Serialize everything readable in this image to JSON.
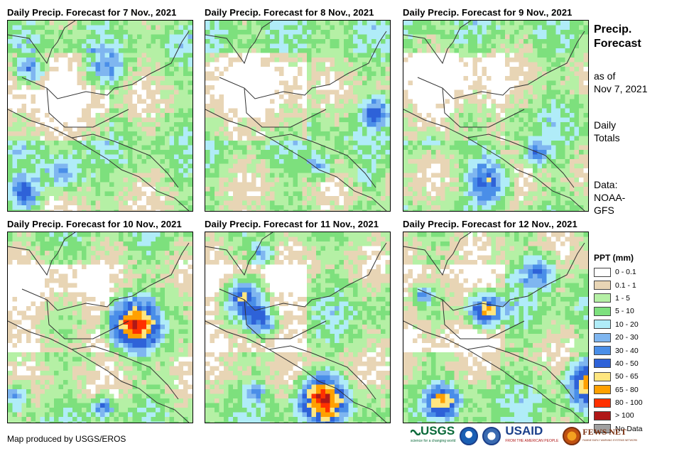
{
  "panels": [
    {
      "title": "Daily Precip. Forecast for 7 Nov., 2021",
      "seed": 7
    },
    {
      "title": "Daily Precip. Forecast for 8 Nov., 2021",
      "seed": 8
    },
    {
      "title": "Daily Precip. Forecast for 9 Nov., 2021",
      "seed": 9
    },
    {
      "title": "Daily Precip. Forecast for 10 Nov., 2021",
      "seed": 10
    },
    {
      "title": "Daily Precip. Forecast for 11 Nov., 2021",
      "seed": 11
    },
    {
      "title": "Daily Precip. Forecast for 12 Nov., 2021",
      "seed": 12
    }
  ],
  "side": {
    "title_line1": "Precip.",
    "title_line2": "Forecast",
    "asof_line1": "as of",
    "asof_line2": "Nov 7, 2021",
    "daily_line1": "Daily",
    "daily_line2": "Totals",
    "data_line1": "Data:",
    "data_line2": "NOAA-",
    "data_line3": "GFS"
  },
  "legend": {
    "title": "PPT (mm)",
    "items": [
      {
        "label": "0 - 0.1",
        "color": "#ffffff"
      },
      {
        "label": "0.1 - 1",
        "color": "#e8d5b5"
      },
      {
        "label": "1 - 5",
        "color": "#b5f0a5"
      },
      {
        "label": "5 - 10",
        "color": "#7de07d"
      },
      {
        "label": "10 - 20",
        "color": "#b0ecf8"
      },
      {
        "label": "20 - 30",
        "color": "#7fb6f0"
      },
      {
        "label": "30 - 40",
        "color": "#4a8ee8"
      },
      {
        "label": "40 - 50",
        "color": "#2e62d8"
      },
      {
        "label": "50 - 65",
        "color": "#ffe680"
      },
      {
        "label": "65 - 80",
        "color": "#ffa000"
      },
      {
        "label": "80 - 100",
        "color": "#ff3000"
      },
      {
        "label": "> 100",
        "color": "#b01818"
      },
      {
        "label": "No Data",
        "color": "#a0a0a0"
      }
    ]
  },
  "credit": "Map produced by USGS/EROS",
  "logos": {
    "usgs": "USGS",
    "usgs_tagline": "science for a changing world",
    "usaid": "USAID",
    "usaid_tagline": "FROM THE AMERICAN PEOPLE",
    "fews": "FEWS NET",
    "fews_tagline": "FAMINE EARLY WARNING SYSTEMS NETWORK"
  }
}
